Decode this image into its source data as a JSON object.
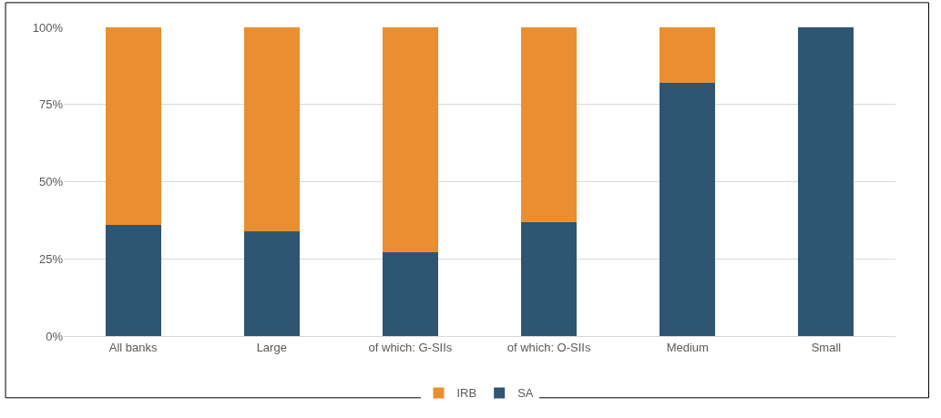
{
  "chart_data": {
    "type": "bar",
    "stacked": true,
    "categories": [
      "All banks",
      "Large",
      "of which: G-SIIs",
      "of which: O-SIIs",
      "Medium",
      "Small"
    ],
    "series": [
      {
        "name": "SA",
        "color": "#2e5572",
        "values": [
          36,
          34,
          27,
          37,
          82,
          100
        ]
      },
      {
        "name": "IRB",
        "color": "#e98f32",
        "values": [
          64,
          66,
          73,
          63,
          18,
          0
        ]
      }
    ],
    "ylim": [
      0,
      100
    ],
    "yticks": [
      {
        "value": 0,
        "label": "0%"
      },
      {
        "value": 25,
        "label": "25%"
      },
      {
        "value": 50,
        "label": "50%"
      },
      {
        "value": 75,
        "label": "75%"
      },
      {
        "value": 100,
        "label": "100%"
      }
    ],
    "grid": "y",
    "legend": "bottom"
  }
}
